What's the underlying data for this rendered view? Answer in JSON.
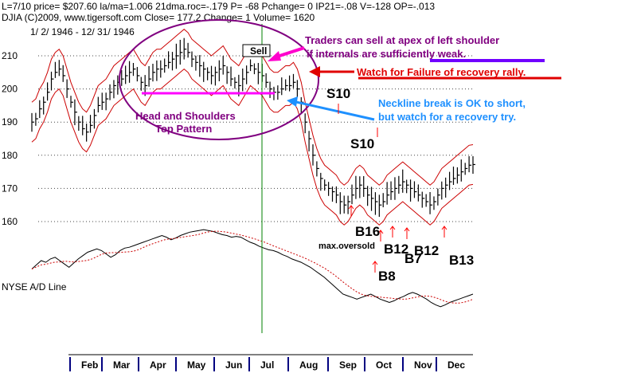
{
  "header": {
    "line1": "L=7/10   price= $207.60   la/ma=1.006  21dma.roc=-.179  P= -68  Pchange=   0  IP21=-.08  V=-128  OP=-.013",
    "line2": "DJIA     (C)2009,  www.tigersoft.com     Close=   177.2   Change=  1  Volume=  1620",
    "line3": "1/ 2/ 1946 - 12/ 31/ 1946"
  },
  "chart_data": {
    "type": "candlestick",
    "title": "DJIA",
    "date_range": [
      "1946-01-02",
      "1946-12-31"
    ],
    "y_ticks": [
      210,
      200,
      190,
      180,
      170,
      160
    ],
    "months": [
      "Feb",
      "Mar",
      "Apr",
      "May",
      "Jun",
      "Jul",
      "Aug",
      "Sep",
      "Oct",
      "Nov",
      "Dec"
    ],
    "close": [
      190,
      191,
      194,
      196,
      199,
      203,
      205,
      206,
      204,
      200,
      196,
      193,
      190,
      188,
      187,
      189,
      192,
      195,
      196,
      197,
      199,
      201,
      202,
      203,
      204,
      205,
      206,
      204,
      202,
      201,
      203,
      205,
      206,
      206,
      207,
      208,
      209,
      210,
      211,
      212,
      211,
      209,
      208,
      207,
      206,
      205,
      204,
      205,
      206,
      207,
      205,
      203,
      202,
      201,
      203,
      205,
      207,
      206,
      205,
      204,
      202,
      200,
      199,
      199,
      200,
      201,
      201,
      202,
      200,
      196,
      190,
      185,
      180,
      176,
      173,
      171,
      170,
      169,
      168,
      166,
      165,
      166,
      168,
      170,
      171,
      170,
      168,
      167,
      166,
      165,
      166,
      168,
      169,
      170,
      171,
      172,
      171,
      170,
      169,
      168,
      167,
      166,
      165,
      166,
      168,
      170,
      171,
      172,
      173,
      174,
      175,
      176,
      177,
      177.2
    ],
    "ad_line_label": "NYSE A/D Line",
    "ad_line": [
      0.5,
      0.45,
      0.4,
      0.42,
      0.38,
      0.36,
      0.4,
      0.44,
      0.48,
      0.43,
      0.38,
      0.34,
      0.3,
      0.28,
      0.26,
      0.28,
      0.32,
      0.36,
      0.33,
      0.28,
      0.25,
      0.24,
      0.22,
      0.2,
      0.18,
      0.16,
      0.14,
      0.12,
      0.1,
      0.12,
      0.15,
      0.13,
      0.1,
      0.08,
      0.06,
      0.05,
      0.04,
      0.03,
      0.04,
      0.05,
      0.07,
      0.09,
      0.1,
      0.12,
      0.11,
      0.12,
      0.15,
      0.18,
      0.2,
      0.23,
      0.25,
      0.27,
      0.28,
      0.3,
      0.33,
      0.35,
      0.38,
      0.4,
      0.42,
      0.45,
      0.48,
      0.52,
      0.56,
      0.6,
      0.65,
      0.7,
      0.75,
      0.8,
      0.82,
      0.84,
      0.86,
      0.84,
      0.82,
      0.8,
      0.83,
      0.86,
      0.88,
      0.9,
      0.88,
      0.85,
      0.83,
      0.8,
      0.78,
      0.8,
      0.83,
      0.86,
      0.9,
      0.93,
      0.95,
      0.93,
      0.9,
      0.88,
      0.86,
      0.84,
      0.82,
      0.8
    ],
    "signals": [
      "B16",
      "B8",
      "B12",
      "B7",
      "B12",
      "B13"
    ],
    "signal_note": "max.oversold",
    "sell_label": "Sell",
    "s10_labels": [
      "S10",
      "S10"
    ],
    "pattern_label_1": "Head and Shoulders",
    "pattern_label_2": "Top Pattern",
    "colors": {
      "price_bars": "#000000",
      "bands": "#cc0000",
      "ad_ma": "#cc0000",
      "vertical_marker": "#008000",
      "ellipse": "#800080",
      "neckline": "#ff00ff",
      "arrow_pink": "#ff00cc",
      "arrow_red": "#e00000",
      "arrow_blue": "#1e90ff",
      "signal_arrows": "#ff0000"
    }
  },
  "annotations": {
    "traders_1": "Traders can sell at apex of left shoulder",
    "traders_2": "if internals are sufficiently weak.",
    "watch_failure": "Watch for Failure of recovery rally.",
    "neckline_1": "Neckline break is OK to short,",
    "neckline_2": "but watch for a recovery try."
  }
}
